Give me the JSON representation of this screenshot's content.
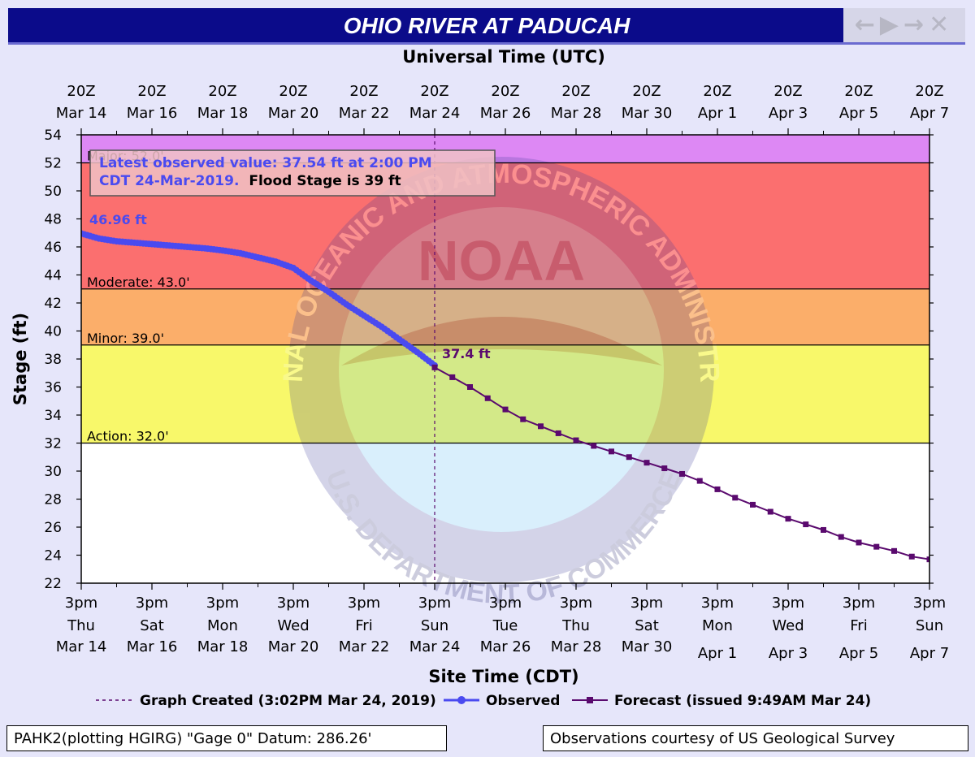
{
  "window": {
    "title": "OHIO RIVER AT PADUCAH",
    "nav_controls": "←▶→✕"
  },
  "chart_data": {
    "type": "line",
    "title": "OHIO RIVER AT PADUCAH",
    "top_axis_label": "Universal Time (UTC)",
    "xlabel": "Site Time (CDT)",
    "ylabel": "Stage (ft)",
    "ylim": [
      22,
      54
    ],
    "yticks": [
      22,
      24,
      26,
      28,
      30,
      32,
      34,
      36,
      38,
      40,
      42,
      44,
      46,
      48,
      50,
      52,
      54
    ],
    "xlim_days": [
      0,
      24
    ],
    "x_ticks": [
      {
        "day": 0,
        "bottom": [
          "3pm",
          "Thu",
          "Mar 14"
        ],
        "top": [
          "20Z",
          "Mar 14"
        ]
      },
      {
        "day": 2,
        "bottom": [
          "3pm",
          "Sat",
          "Mar 16"
        ],
        "top": [
          "20Z",
          "Mar 16"
        ]
      },
      {
        "day": 4,
        "bottom": [
          "3pm",
          "Mon",
          "Mar 18"
        ],
        "top": [
          "20Z",
          "Mar 18"
        ]
      },
      {
        "day": 6,
        "bottom": [
          "3pm",
          "Wed",
          "Mar 20"
        ],
        "top": [
          "20Z",
          "Mar 20"
        ]
      },
      {
        "day": 8,
        "bottom": [
          "3pm",
          "Fri",
          "Mar 22"
        ],
        "top": [
          "20Z",
          "Mar 22"
        ]
      },
      {
        "day": 10,
        "bottom": [
          "3pm",
          "Sun",
          "Mar 24"
        ],
        "top": [
          "20Z",
          "Mar 24"
        ]
      },
      {
        "day": 12,
        "bottom": [
          "3pm",
          "Tue",
          "Mar 26"
        ],
        "top": [
          "20Z",
          "Mar 26"
        ]
      },
      {
        "day": 14,
        "bottom": [
          "3pm",
          "Thu",
          "Mar 28"
        ],
        "top": [
          "20Z",
          "Mar 28"
        ]
      },
      {
        "day": 16,
        "bottom": [
          "3pm",
          "Sat",
          "Mar 30"
        ],
        "top": [
          "20Z",
          "Mar 30"
        ]
      },
      {
        "day": 18,
        "bottom": [
          "3pm",
          "Mon",
          "Apr 1"
        ],
        "top": [
          "20Z",
          "Apr  1"
        ]
      },
      {
        "day": 20,
        "bottom": [
          "3pm",
          "Wed",
          "Apr 3"
        ],
        "top": [
          "20Z",
          "Apr  3"
        ]
      },
      {
        "day": 22,
        "bottom": [
          "3pm",
          "Fri",
          "Apr 5"
        ],
        "top": [
          "20Z",
          "Apr  5"
        ]
      },
      {
        "day": 24,
        "bottom": [
          "3pm",
          "Sun",
          "Apr 7"
        ],
        "top": [
          "20Z",
          "Apr  7"
        ]
      }
    ],
    "flood_bands": [
      {
        "name": "major",
        "from": 52,
        "to": 54,
        "color": "#dd88f4"
      },
      {
        "name": "moderate",
        "from": 43,
        "to": 52,
        "color": "#fb6f6f"
      },
      {
        "name": "minor",
        "from": 39,
        "to": 43,
        "color": "#fbae6a"
      },
      {
        "name": "action",
        "from": 32,
        "to": 39,
        "color": "#f8f86a"
      },
      {
        "name": "normal",
        "from": 22,
        "to": 32,
        "color": "#ffffff"
      }
    ],
    "stage_lines": [
      {
        "value": 52,
        "label": "Major: 52.0'"
      },
      {
        "value": 43,
        "label": "Moderate: 43.0'"
      },
      {
        "value": 39,
        "label": "Minor: 39.0'"
      },
      {
        "value": 32,
        "label": "Action: 32.0'"
      }
    ],
    "graph_created_day": 10,
    "series": [
      {
        "name": "Observed",
        "color": "#4a4af0",
        "x_days": [
          0,
          0.5,
          1,
          1.5,
          2,
          2.5,
          3,
          3.5,
          4,
          4.5,
          5,
          5.5,
          6,
          6.5,
          7,
          7.5,
          8,
          8.5,
          9,
          9.5,
          10
        ],
        "y": [
          46.96,
          46.6,
          46.4,
          46.3,
          46.2,
          46.1,
          46.0,
          45.9,
          45.75,
          45.55,
          45.25,
          44.95,
          44.5,
          43.6,
          42.8,
          41.9,
          41.1,
          40.3,
          39.4,
          38.5,
          37.54
        ]
      },
      {
        "name": "Forecast",
        "color": "#5a0a6e",
        "x_days": [
          10,
          10.5,
          11,
          11.5,
          12,
          12.5,
          13,
          13.5,
          14,
          14.5,
          15,
          15.5,
          16,
          16.5,
          17,
          17.5,
          18,
          18.5,
          19,
          19.5,
          20,
          20.5,
          21,
          21.5,
          22,
          22.5,
          23,
          23.5,
          24
        ],
        "y": [
          37.4,
          36.7,
          36.0,
          35.2,
          34.4,
          33.7,
          33.2,
          32.7,
          32.2,
          31.8,
          31.4,
          31.0,
          30.6,
          30.2,
          29.8,
          29.3,
          28.7,
          28.1,
          27.6,
          27.1,
          26.6,
          26.2,
          25.8,
          25.3,
          24.9,
          24.6,
          24.3,
          23.9,
          23.7
        ]
      }
    ],
    "annotations": {
      "latest_line1": "Latest observed value: 37.54 ft at 2:00 PM",
      "latest_line2_date": "CDT 24-Mar-2019.",
      "latest_line2_flood": "Flood Stage is 39 ft",
      "start_value": "46.96 ft",
      "forecast_start_value": "37.4 ft"
    },
    "legend": {
      "placement": "bottom",
      "graph_created": "Graph Created (3:02PM Mar 24, 2019)",
      "observed": "Observed",
      "forecast": "Forecast (issued 9:49AM Mar 24)"
    },
    "watermark": {
      "top_text": "NATIONAL OCEANIC AND ATMOSPHERIC ADMINISTRATION",
      "bottom_text": "U.S. DEPARTMENT OF COMMERCE",
      "center_text": "NOAA"
    }
  },
  "footer": {
    "left": "PAHK2(plotting HGIRG) \"Gage 0\" Datum: 286.26'",
    "right": "Observations courtesy of US Geological Survey"
  }
}
